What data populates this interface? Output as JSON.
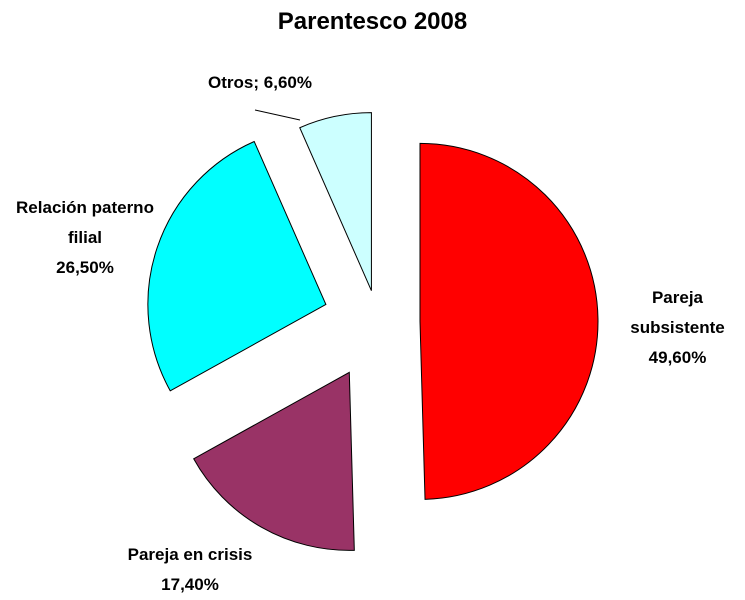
{
  "chart_data": {
    "type": "pie",
    "title": "Parentesco 2008",
    "categories": [
      "Pareja subsistente",
      "Pareja en crisis",
      "Relación paterno filial",
      "Otros;"
    ],
    "values": [
      49.6,
      17.4,
      26.5,
      6.6
    ],
    "value_labels": [
      "49,60%",
      "17,40%",
      "26,50%",
      "6,60%"
    ],
    "colors": [
      "#ff0000",
      "#993366",
      "#00ffff",
      "#ccffff"
    ]
  }
}
